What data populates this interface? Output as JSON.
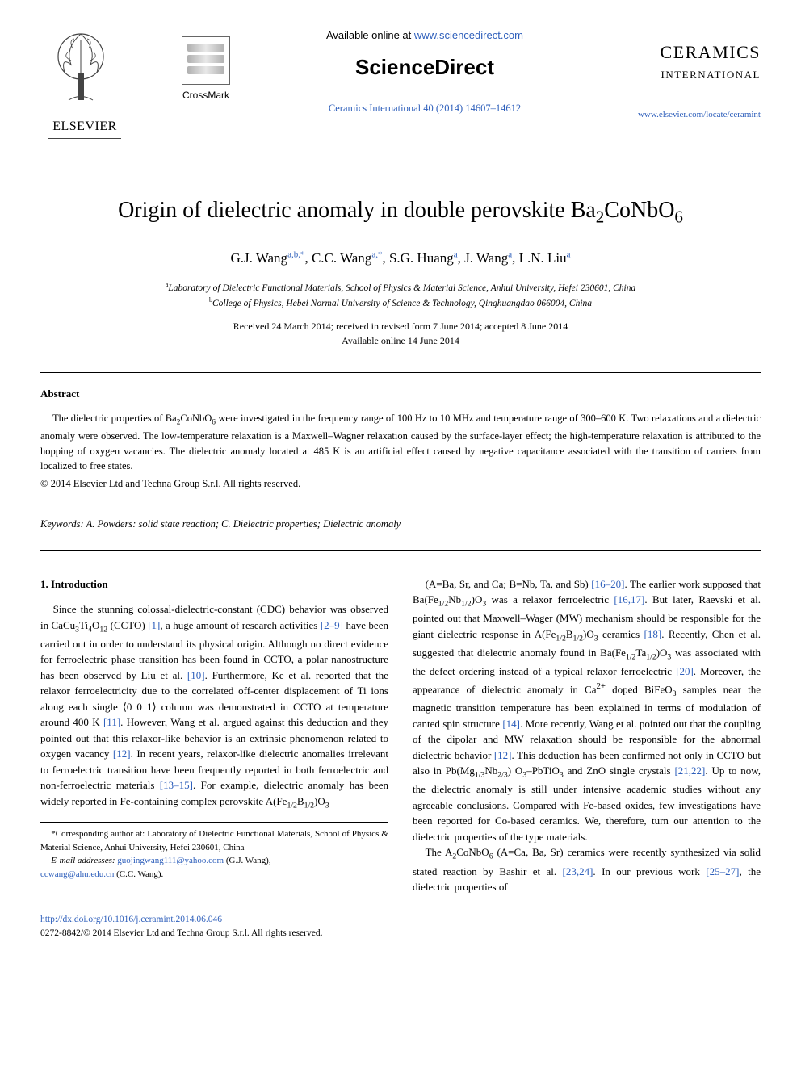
{
  "header": {
    "elsevier_label": "ELSEVIER",
    "crossmark_label": "CrossMark",
    "available_prefix": "Available online at ",
    "available_url": "www.sciencedirect.com",
    "sciencedirect_logo": "ScienceDirect",
    "journal_ref": "Ceramics International 40 (2014) 14607–14612",
    "journal_name_1": "CERAMICS",
    "journal_name_2": "INTERNATIONAL",
    "journal_link": "www.elsevier.com/locate/ceramint"
  },
  "article": {
    "title_html": "Origin of dielectric anomaly in double perovskite Ba<sub>2</sub>CoNbO<sub>6</sub>",
    "authors_html": "G.J. Wang<sup>a,b,*</sup>, C.C. Wang<sup>a,*</sup>, S.G. Huang<sup>a</sup>, J. Wang<sup>a</sup>, L.N. Liu<sup>a</sup>",
    "affiliations": [
      {
        "sup": "a",
        "text": "Laboratory of Dielectric Functional Materials, School of Physics & Material Science, Anhui University, Hefei 230601, China"
      },
      {
        "sup": "b",
        "text": "College of Physics, Hebei Normal University of Science & Technology, Qinghuangdao 066004, China"
      }
    ],
    "dates_line1": "Received 24 March 2014; received in revised form 7 June 2014; accepted 8 June 2014",
    "dates_line2": "Available online 14 June 2014"
  },
  "abstract": {
    "heading": "Abstract",
    "body_html": "The dielectric properties of Ba<sub>2</sub>CoNbO<sub>6</sub> were investigated in the frequency range of 100 Hz to 10 MHz and temperature range of 300–600 K. Two relaxations and a dielectric anomaly were observed. The low-temperature relaxation is a Maxwell–Wagner relaxation caused by the surface-layer effect; the high-temperature relaxation is attributed to the hopping of oxygen vacancies. The dielectric anomaly located at 485 K is an artificial effect caused by negative capacitance associated with the transition of carriers from localized to free states.",
    "copyright": "© 2014 Elsevier Ltd and Techna Group S.r.l. All rights reserved.",
    "keywords_label": "Keywords:",
    "keywords_text": " A. Powders: solid state reaction; C. Dielectric properties; Dielectric anomaly"
  },
  "body": {
    "section_heading": "1.  Introduction",
    "col1_html": "Since the stunning colossal-dielectric-constant (CDC) behavior was observed in CaCu<sub>3</sub>Ti<sub>4</sub>O<sub>12</sub> (CCTO) <span class=\"ref\">[1]</span>, a huge amount of research activities <span class=\"ref\">[2–9]</span> have been carried out in order to understand its physical origin. Although no direct evidence for ferroelectric phase transition has been found in CCTO, a polar nanostructure has been observed by Liu et al. <span class=\"ref\">[10]</span>. Furthermore, Ke et al. reported that the relaxor ferroelectricity due to the correlated off-center displacement of Ti ions along each single ⟨0 0 1⟩ column was demonstrated in CCTO at temperature around 400 K <span class=\"ref\">[11]</span>. However, Wang et al. argued against this deduction and they pointed out that this relaxor-like behavior is an extrinsic phenomenon related to oxygen vacancy <span class=\"ref\">[12]</span>. In recent years, relaxor-like dielectric anomalies irrelevant to ferroelectric transition have been frequently reported in both ferroelectric and non-ferroelectric materials <span class=\"ref\">[13–15]</span>. For example, dielectric anomaly has been widely reported in Fe-containing complex perovskite A(Fe<sub>1/2</sub>B<sub>1/2</sub>)O<sub>3</sub>",
    "col2_html": "(A=Ba, Sr, and Ca; B=Nb, Ta, and Sb) <span class=\"ref\">[16–20]</span>. The earlier work supposed that Ba(Fe<sub>1/2</sub>Nb<sub>1/2</sub>)O<sub>3</sub> was a relaxor ferroelectric <span class=\"ref\">[16,17]</span>. But later, Raevski et al. pointed out that Maxwell–Wager (MW) mechanism should be responsible for the giant dielectric response in A(Fe<sub>1/2</sub>B<sub>1/2</sub>)O<sub>3</sub> ceramics <span class=\"ref\">[18]</span>. Recently, Chen et al. suggested that dielectric anomaly found in Ba(Fe<sub>1/2</sub>Ta<sub>1/2</sub>)O<sub>3</sub> was associated with the defect ordering instead of a typical relaxor ferroelectric <span class=\"ref\">[20]</span>. Moreover, the appearance of dielectric anomaly in Ca<sup>2+</sup> doped BiFeO<sub>3</sub> samples near the magnetic transition temperature has been explained in terms of modulation of canted spin structure <span class=\"ref\">[14]</span>. More recently, Wang et al. pointed out that the coupling of the dipolar and MW relaxation should be responsible for the abnormal dielectric behavior <span class=\"ref\">[12]</span>. This deduction has been confirmed not only in CCTO but also in Pb(Mg<sub>1/3</sub>Nb<sub>2/3</sub>) O<sub>3</sub>–PbTiO<sub>3</sub> and ZnO single crystals <span class=\"ref\">[21,22]</span>. Up to now, the dielectric anomaly is still under intensive academic studies without any agreeable conclusions. Compared with Fe-based oxides, few investigations have been reported for Co-based ceramics. We, therefore, turn our attention to the dielectric properties of the type materials.",
    "col2_para2_html": "The A<sub>2</sub>CoNbO<sub>6</sub> (A=Ca, Ba, Sr) ceramics were recently synthesized via solid stated reaction by Bashir et al. <span class=\"ref\">[23,24]</span>. In our previous work <span class=\"ref\">[25–27]</span>, the dielectric properties of"
  },
  "footnotes": {
    "corr": "*Corresponding author at: Laboratory of Dielectric Functional Materials, School of Physics & Material Science, Anhui University, Hefei 230601, China",
    "email_label": "E-mail addresses: ",
    "email1": "guojingwang111@yahoo.com",
    "email1_who": " (G.J. Wang),",
    "email2": "ccwang@ahu.edu.cn",
    "email2_who": " (C.C. Wang)."
  },
  "footer": {
    "doi": "http://dx.doi.org/10.1016/j.ceramint.2014.06.046",
    "issn_line": "0272-8842/© 2014 Elsevier Ltd and Techna Group S.r.l. All rights reserved."
  },
  "colors": {
    "link": "#2e5fbb",
    "text": "#000000",
    "rule": "#000000"
  }
}
